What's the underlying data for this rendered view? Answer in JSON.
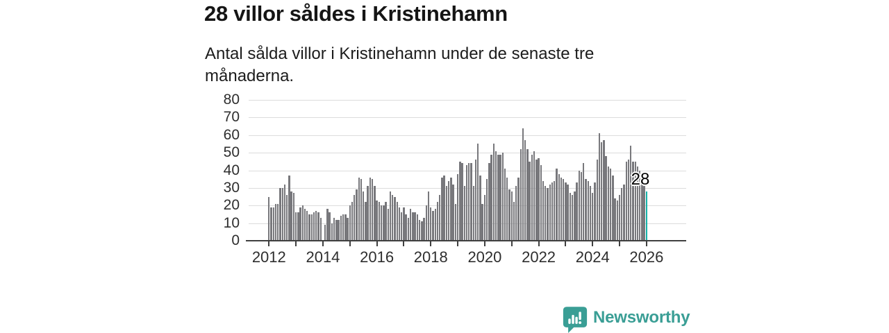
{
  "header": {
    "title": "28 villor såldes i Kristinehamn",
    "subtitle": "Antal sålda villor i Kristinehamn under de senaste tre månaderna."
  },
  "annotation": {
    "last_value_label": "28"
  },
  "brand": {
    "name": "Newsworthy",
    "logo_icon": "speech-bubble-bar-chart-icon"
  },
  "colors": {
    "bar": "#78787c",
    "highlight": "#14b1a7",
    "grid": "#dcdcdc",
    "axis": "#3f3f3f",
    "tick_text": "#2e2e2e",
    "brand_teal": "#3a9e95"
  },
  "chart_data": {
    "type": "bar",
    "title": "28 villor såldes i Kristinehamn",
    "subtitle": "Antal sålda villor i Kristinehamn under de senaste tre månaderna.",
    "x_start": "2012-01",
    "x_end": "2026-01",
    "frequency": "monthly",
    "x_axis_tick_years": [
      2012,
      2013,
      2014,
      2015,
      2016,
      2017,
      2018,
      2019,
      2020,
      2021,
      2022,
      2023,
      2024,
      2025,
      2026
    ],
    "x_axis_label_years": [
      "2012",
      "2014",
      "2016",
      "2018",
      "2020",
      "2022",
      "2024",
      "2026"
    ],
    "ylim": [
      0,
      80
    ],
    "y_ticks": [
      0,
      10,
      20,
      30,
      40,
      50,
      60,
      70,
      80
    ],
    "grid": "horizontal",
    "legend": "none",
    "highlight_last_bar": true,
    "last_value": 28,
    "values": [
      25,
      19,
      19,
      21,
      21,
      30,
      30,
      32,
      26,
      37,
      28,
      27,
      16,
      16,
      19,
      20,
      18,
      17,
      15,
      15,
      16,
      17,
      16,
      13,
      0,
      9,
      18,
      16,
      10,
      13,
      12,
      12,
      14,
      15,
      15,
      13,
      20,
      22,
      26,
      29,
      36,
      35,
      28,
      22,
      31,
      36,
      35,
      31,
      23,
      22,
      20,
      20,
      22,
      18,
      28,
      26,
      25,
      22,
      19,
      16,
      19,
      15,
      13,
      18,
      16,
      16,
      15,
      12,
      11,
      13,
      20,
      28,
      19,
      17,
      18,
      22,
      26,
      36,
      37,
      31,
      34,
      36,
      32,
      21,
      38,
      45,
      44,
      31,
      43,
      44,
      44,
      31,
      46,
      55,
      37,
      21,
      26,
      35,
      44,
      49,
      55,
      51,
      49,
      49,
      50,
      41,
      36,
      29,
      28,
      22,
      31,
      36,
      52,
      64,
      57,
      52,
      45,
      49,
      51,
      46,
      47,
      43,
      34,
      31,
      30,
      32,
      33,
      34,
      41,
      38,
      36,
      35,
      33,
      32,
      27,
      26,
      28,
      33,
      40,
      39,
      44,
      35,
      34,
      31,
      27,
      33,
      46,
      61,
      56,
      57,
      48,
      42,
      41,
      37,
      24,
      23,
      26,
      30,
      32,
      45,
      46,
      54,
      45,
      45,
      42,
      40,
      35,
      31,
      28
    ]
  }
}
